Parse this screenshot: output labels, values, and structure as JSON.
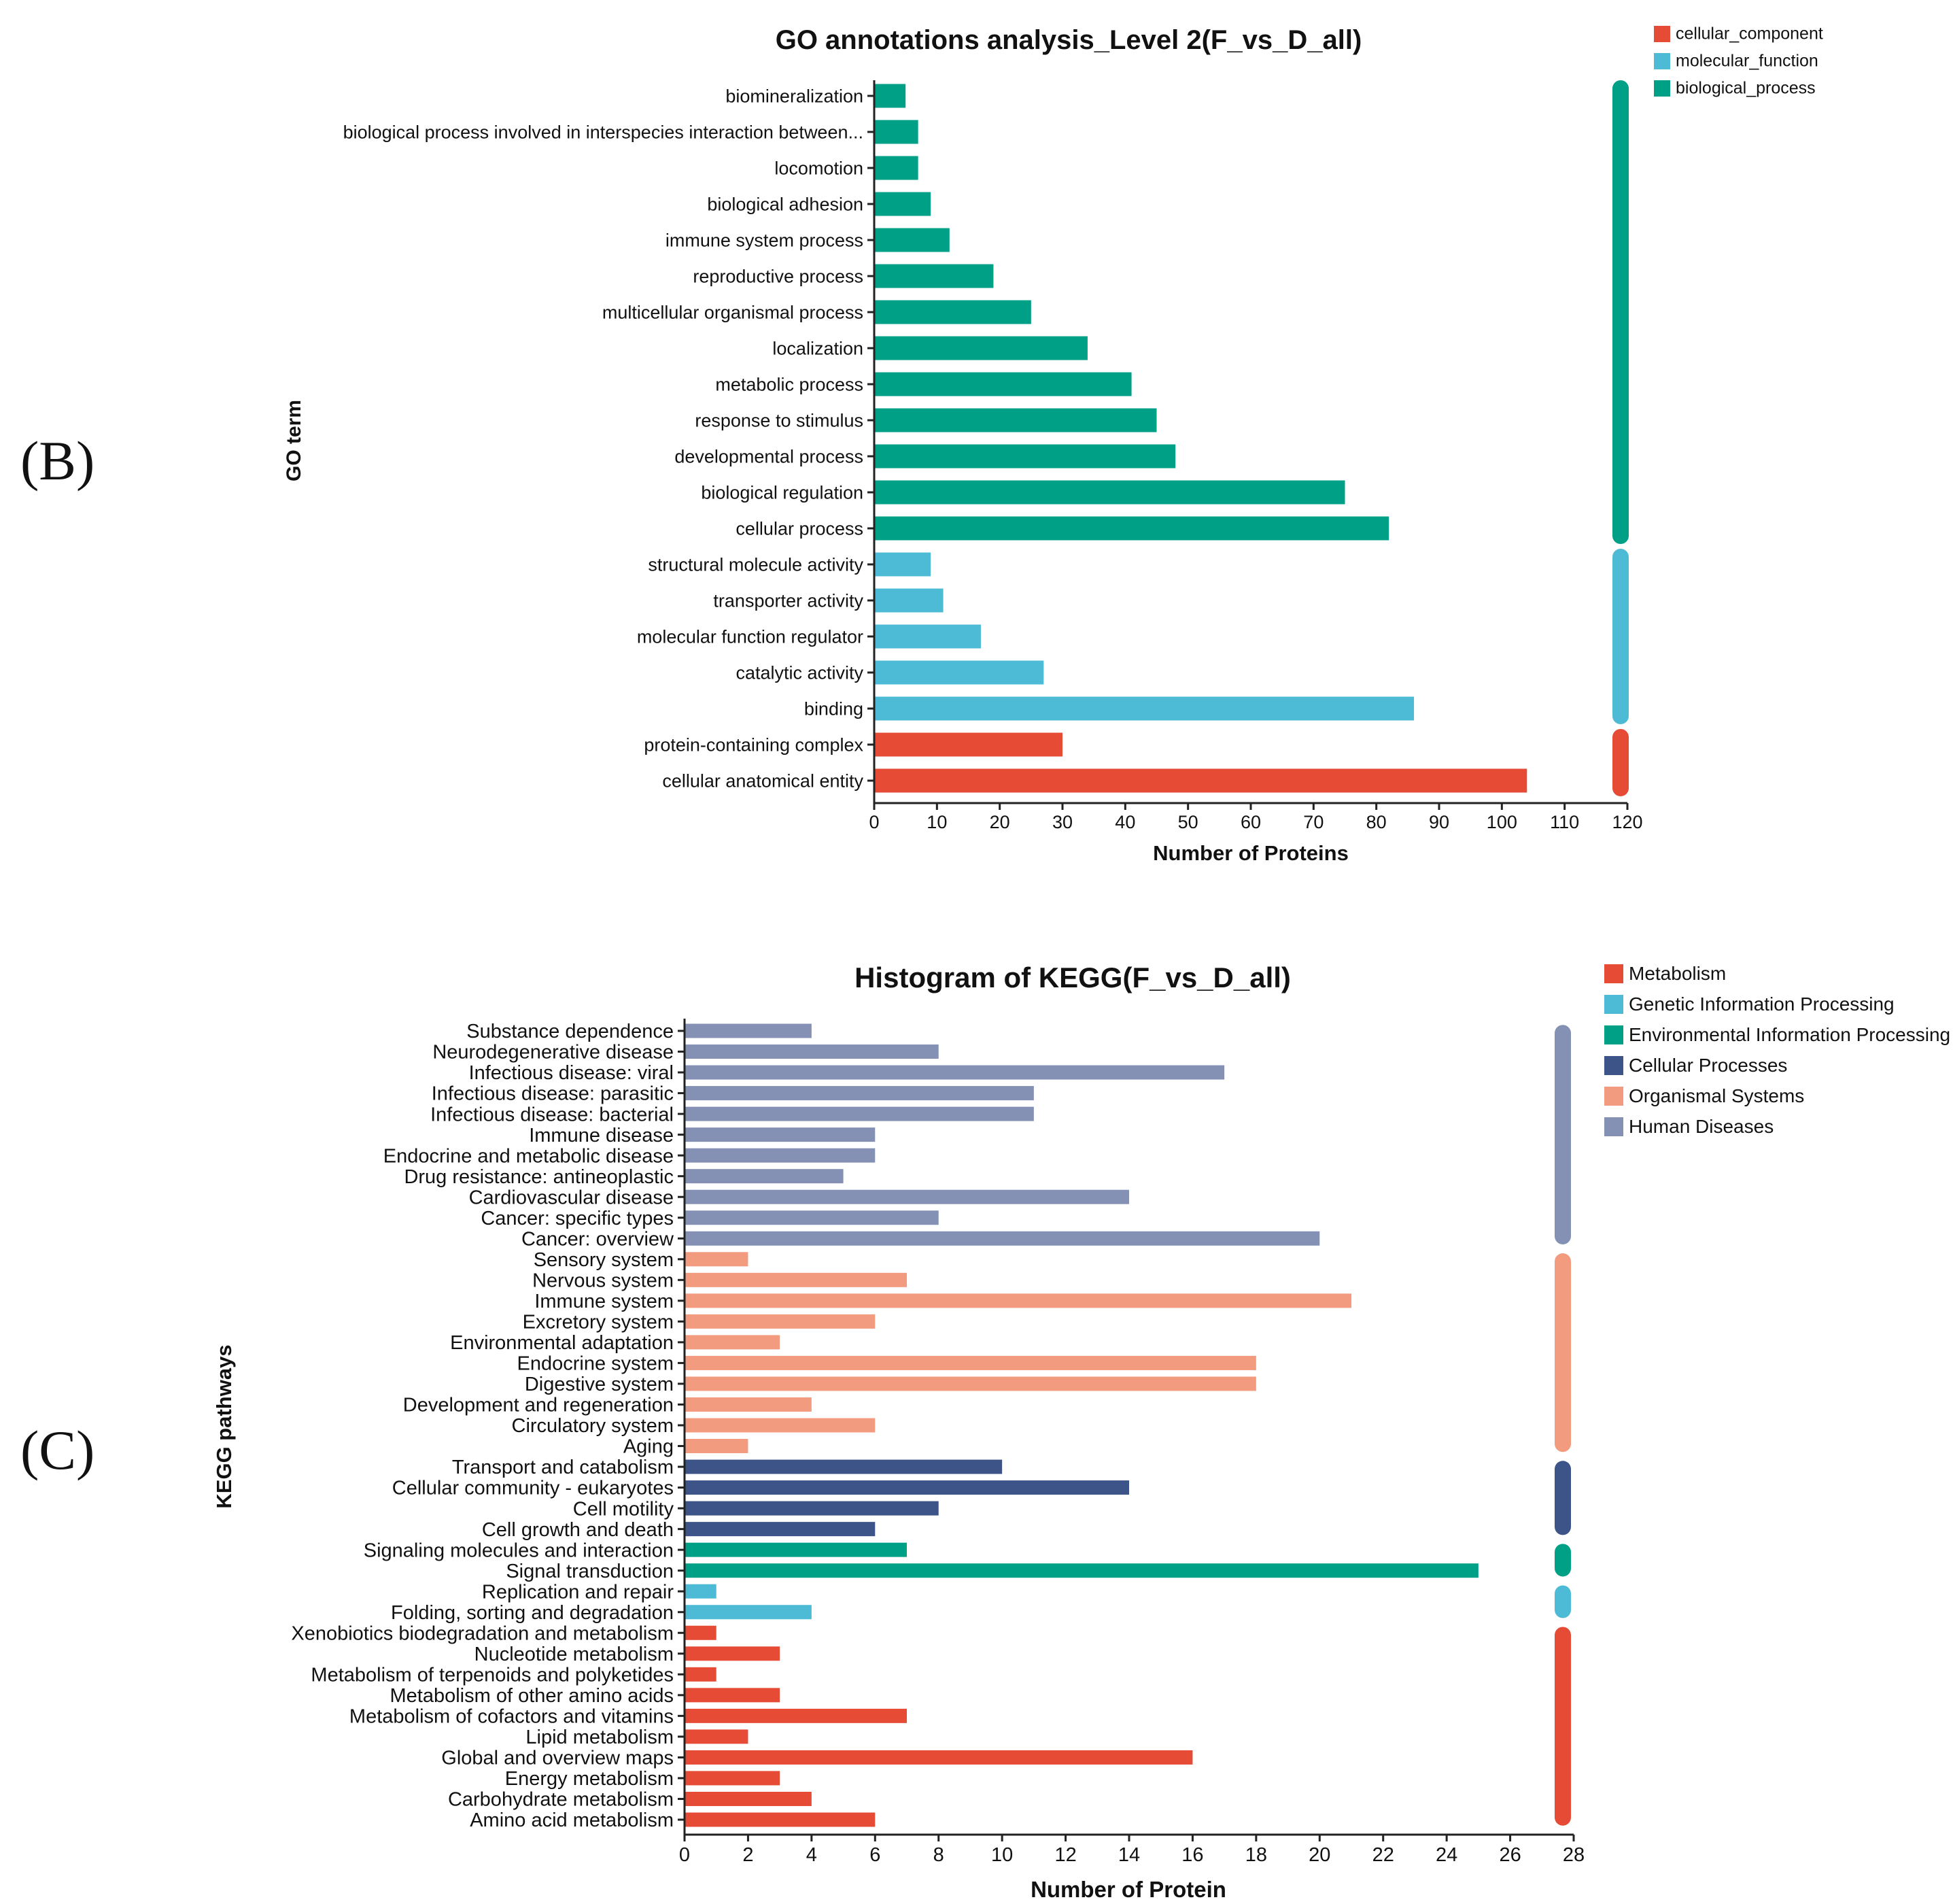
{
  "panels": {
    "b_letter": "(B)",
    "c_letter": "(C)"
  },
  "chart_data": [
    {
      "type": "bar",
      "orientation": "horizontal",
      "title": "GO annotations analysis_Level 2(F_vs_D_all)",
      "xlabel": "Number of Proteins",
      "ylabel": "GO term",
      "xlim": [
        0,
        120
      ],
      "xticks": [
        "0",
        "10",
        "20",
        "30",
        "40",
        "50",
        "60",
        "70",
        "80",
        "90",
        "100",
        "110",
        "120"
      ],
      "categories": [
        "biomineralization",
        "biological process involved in interspecies interaction between...",
        "locomotion",
        "biological adhesion",
        "immune system process",
        "reproductive process",
        "multicellular organismal process",
        "localization",
        "metabolic process",
        "response to stimulus",
        "developmental process",
        "biological regulation",
        "cellular process",
        "structural molecule activity",
        "transporter activity",
        "molecular function regulator",
        "catalytic activity",
        "binding",
        "protein-containing complex",
        "cellular anatomical entity"
      ],
      "values": [
        5,
        7,
        7,
        9,
        12,
        19,
        25,
        34,
        41,
        45,
        48,
        75,
        82,
        9,
        11,
        17,
        27,
        86,
        30,
        104
      ],
      "groups": [
        "biological_process",
        "biological_process",
        "biological_process",
        "biological_process",
        "biological_process",
        "biological_process",
        "biological_process",
        "biological_process",
        "biological_process",
        "biological_process",
        "biological_process",
        "biological_process",
        "biological_process",
        "molecular_function",
        "molecular_function",
        "molecular_function",
        "molecular_function",
        "molecular_function",
        "cellular_component",
        "cellular_component"
      ],
      "legend": [
        {
          "name": "cellular_component",
          "color": "#e64b35"
        },
        {
          "name": "molecular_function",
          "color": "#4dbbd5"
        },
        {
          "name": "biological_process",
          "color": "#00a087"
        }
      ],
      "legend_position": "top-right"
    },
    {
      "type": "bar",
      "orientation": "horizontal",
      "title": "Histogram of KEGG(F_vs_D_all)",
      "xlabel": "Number of Protein",
      "ylabel": "KEGG pathways",
      "xlim": [
        0,
        28
      ],
      "xticks": [
        "0",
        "2",
        "4",
        "6",
        "8",
        "10",
        "12",
        "14",
        "16",
        "18",
        "20",
        "22",
        "24",
        "26",
        "28"
      ],
      "categories": [
        "Substance dependence",
        "Neurodegenerative disease",
        "Infectious disease: viral",
        "Infectious disease: parasitic",
        "Infectious disease: bacterial",
        "Immune disease",
        "Endocrine and metabolic disease",
        "Drug resistance: antineoplastic",
        "Cardiovascular disease",
        "Cancer: specific types",
        "Cancer: overview",
        "Sensory system",
        "Nervous system",
        "Immune system",
        "Excretory system",
        "Environmental adaptation",
        "Endocrine system",
        "Digestive system",
        "Development and regeneration",
        "Circulatory system",
        "Aging",
        "Transport and catabolism",
        "Cellular community - eukaryotes",
        "Cell motility",
        "Cell growth and death",
        "Signaling molecules and interaction",
        "Signal transduction",
        "Replication and repair",
        "Folding, sorting and degradation",
        "Xenobiotics biodegradation and metabolism",
        "Nucleotide metabolism",
        "Metabolism of terpenoids and polyketides",
        "Metabolism of other amino acids",
        "Metabolism of cofactors and vitamins",
        "Lipid metabolism",
        "Global and overview maps",
        "Energy metabolism",
        "Carbohydrate metabolism",
        "Amino acid metabolism"
      ],
      "values": [
        4,
        8,
        17,
        11,
        11,
        6,
        6,
        5,
        14,
        8,
        20,
        2,
        7,
        21,
        6,
        3,
        18,
        18,
        4,
        6,
        2,
        10,
        14,
        8,
        6,
        7,
        25,
        1,
        4,
        1,
        3,
        1,
        3,
        7,
        2,
        16,
        3,
        4,
        6
      ],
      "groups": [
        "Human Diseases",
        "Human Diseases",
        "Human Diseases",
        "Human Diseases",
        "Human Diseases",
        "Human Diseases",
        "Human Diseases",
        "Human Diseases",
        "Human Diseases",
        "Human Diseases",
        "Human Diseases",
        "Organismal Systems",
        "Organismal Systems",
        "Organismal Systems",
        "Organismal Systems",
        "Organismal Systems",
        "Organismal Systems",
        "Organismal Systems",
        "Organismal Systems",
        "Organismal Systems",
        "Organismal Systems",
        "Cellular Processes",
        "Cellular Processes",
        "Cellular Processes",
        "Cellular Processes",
        "Environmental Information Processing",
        "Environmental Information Processing",
        "Genetic Information Processing",
        "Genetic Information Processing",
        "Metabolism",
        "Metabolism",
        "Metabolism",
        "Metabolism",
        "Metabolism",
        "Metabolism",
        "Metabolism",
        "Metabolism",
        "Metabolism",
        "Metabolism"
      ],
      "legend": [
        {
          "name": "Metabolism",
          "color": "#e64b35"
        },
        {
          "name": "Genetic Information Processing",
          "color": "#4dbbd5"
        },
        {
          "name": "Environmental Information Processing",
          "color": "#00a087"
        },
        {
          "name": "Cellular Processes",
          "color": "#3c5488"
        },
        {
          "name": "Organismal Systems",
          "color": "#f39b7f"
        },
        {
          "name": "Human Diseases",
          "color": "#8491b4"
        }
      ],
      "legend_position": "top-right"
    }
  ]
}
